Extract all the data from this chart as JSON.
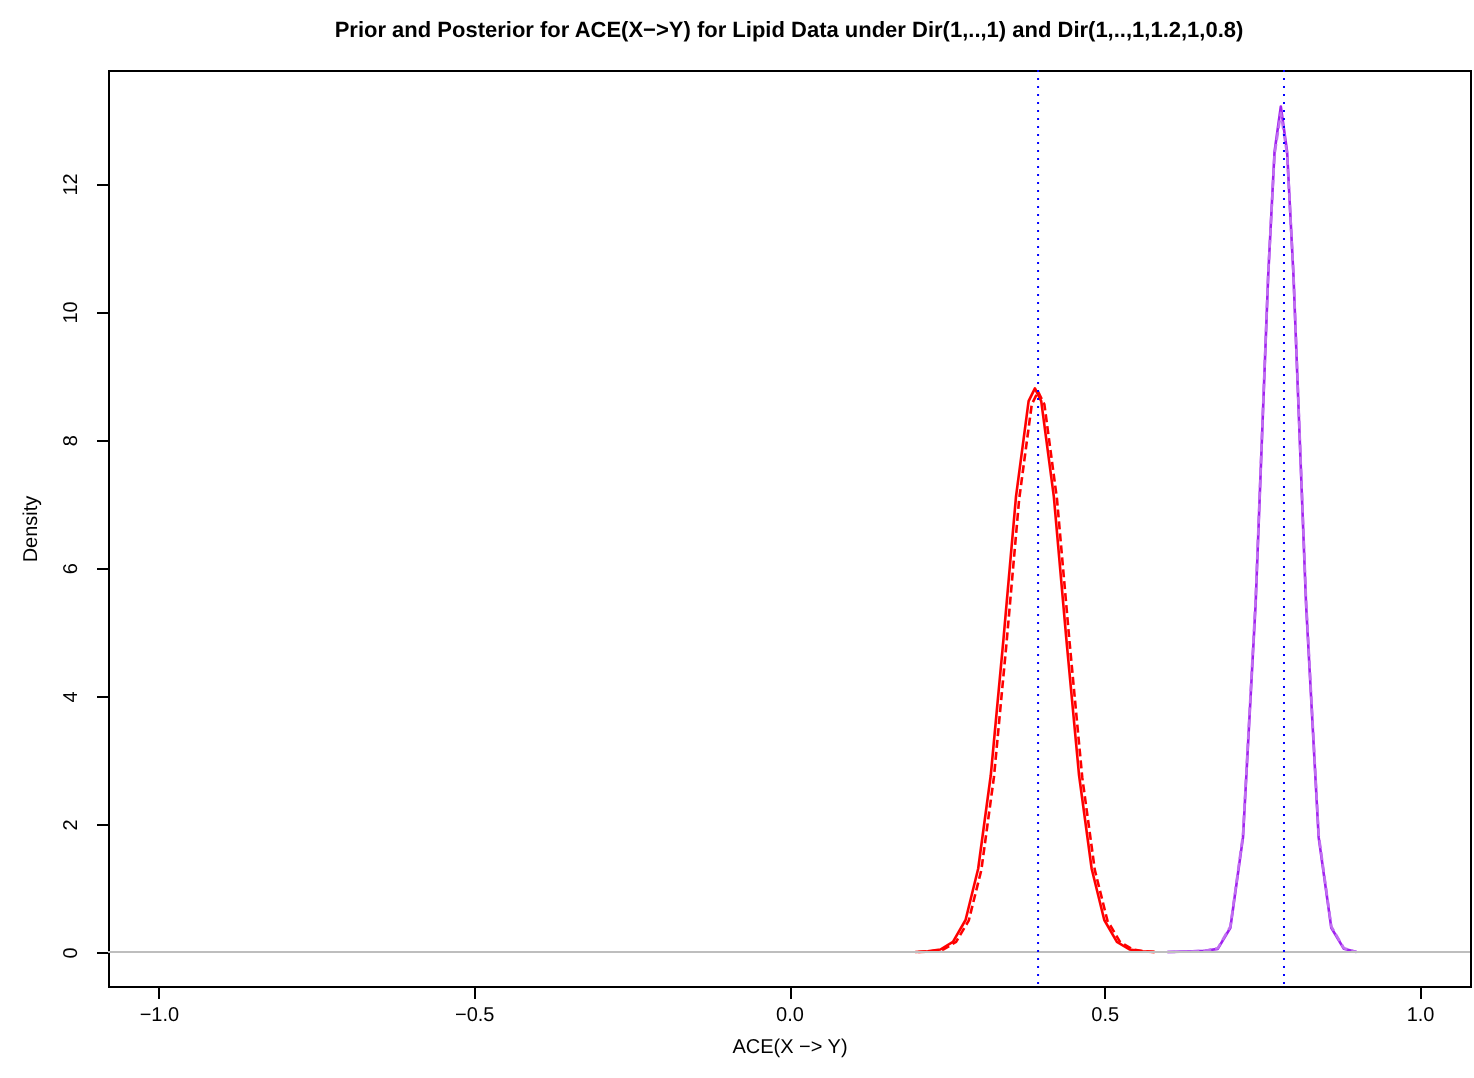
{
  "chart_data": {
    "type": "line",
    "title": "Prior and Posterior for ACE(X−>Y) for Lipid Data under Dir(1,..,1) and Dir(1,..,1,1.2,1,0.8)",
    "xlabel": "ACE(X −> Y)",
    "ylabel": "Density",
    "xlim": [
      -1.08,
      1.08
    ],
    "ylim": [
      -0.53,
      13.77
    ],
    "xticks": [
      {
        "value": -1,
        "label": "−1.0"
      },
      {
        "value": -0.5,
        "label": "−0.5"
      },
      {
        "value": 0,
        "label": "0.0"
      },
      {
        "value": 0.5,
        "label": "0.5"
      },
      {
        "value": 1,
        "label": "1.0"
      }
    ],
    "yticks": [
      0,
      2,
      4,
      6,
      8,
      10,
      12
    ],
    "grid": false,
    "series": [
      {
        "color": "#ff0000",
        "line_style": "solid",
        "x": [
          0.2,
          0.22,
          0.24,
          0.26,
          0.28,
          0.3,
          0.32,
          0.34,
          0.36,
          0.38,
          0.39,
          0.4,
          0.42,
          0.44,
          0.46,
          0.48,
          0.5,
          0.52,
          0.54,
          0.56,
          0.58
        ],
        "values": [
          0,
          0.01,
          0.04,
          0.16,
          0.5,
          1.3,
          2.76,
          4.87,
          7.11,
          8.6,
          8.8,
          8.6,
          7.11,
          4.87,
          2.76,
          1.3,
          0.5,
          0.16,
          0.04,
          0.01,
          0
        ]
      },
      {
        "color": "#ff0000",
        "line_style": "dashed",
        "x": [
          0.205,
          0.225,
          0.245,
          0.265,
          0.285,
          0.305,
          0.325,
          0.345,
          0.365,
          0.385,
          0.395,
          0.405,
          0.425,
          0.445,
          0.465,
          0.485,
          0.505,
          0.525,
          0.545,
          0.565,
          0.585
        ],
        "values": [
          0,
          0.01,
          0.04,
          0.16,
          0.49,
          1.28,
          2.73,
          4.83,
          7.07,
          8.55,
          8.75,
          8.55,
          7.07,
          4.83,
          2.73,
          1.28,
          0.49,
          0.16,
          0.04,
          0.01,
          0
        ]
      },
      {
        "color": "#a020f0",
        "line_style": "solid",
        "x": [
          0.6,
          0.64,
          0.66,
          0.68,
          0.7,
          0.72,
          0.74,
          0.76,
          0.77,
          0.78,
          0.79,
          0.8,
          0.82,
          0.84,
          0.86,
          0.88,
          0.9
        ],
        "values": [
          0,
          0.01,
          0.02,
          0.05,
          0.38,
          1.79,
          5.43,
          10.57,
          12.49,
          13.2,
          12.49,
          10.57,
          5.43,
          1.79,
          0.38,
          0.05,
          0
        ]
      },
      {
        "color": "#c070f0",
        "line_style": "dashed",
        "x": [
          0.6,
          0.64,
          0.66,
          0.68,
          0.7,
          0.72,
          0.74,
          0.76,
          0.77,
          0.78,
          0.79,
          0.8,
          0.82,
          0.84,
          0.86,
          0.88,
          0.9
        ],
        "values": [
          0,
          0.01,
          0.02,
          0.06,
          0.4,
          1.83,
          5.5,
          10.6,
          12.45,
          13.1,
          12.45,
          10.6,
          5.5,
          1.83,
          0.4,
          0.06,
          0
        ]
      }
    ],
    "ref_lines": [
      {
        "axis": "y",
        "value": 0,
        "color": "#bebebe",
        "line_style": "solid"
      },
      {
        "axis": "x",
        "value": 0.395,
        "color": "#0000ff",
        "line_style": "dotted"
      },
      {
        "axis": "x",
        "value": 0.785,
        "color": "#0000ff",
        "line_style": "dotted"
      }
    ]
  }
}
